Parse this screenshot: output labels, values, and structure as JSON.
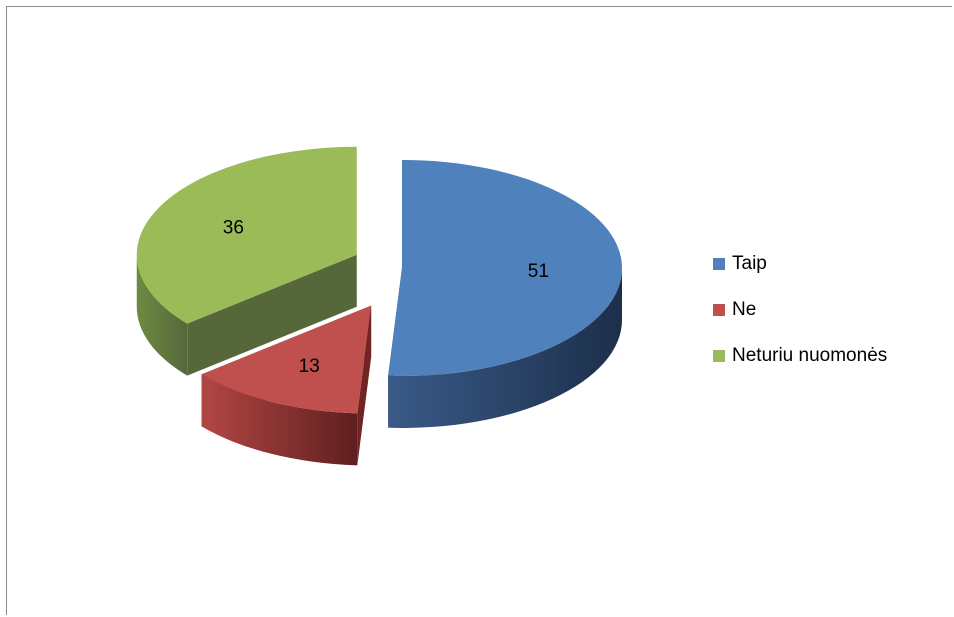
{
  "chart_data": {
    "type": "pie",
    "style": "3d-exploded",
    "title": "",
    "categories": [
      "Taip",
      "Ne",
      "Neturiu nuomonės"
    ],
    "values": [
      51,
      13,
      36
    ],
    "data_labels": [
      "51",
      "13",
      "36"
    ],
    "colors": [
      "#4f81bd",
      "#c0504d",
      "#9bbb59"
    ],
    "side_colors": [
      "#1f3554",
      "#6e2524",
      "#56683a"
    ],
    "legend_position": "right"
  }
}
